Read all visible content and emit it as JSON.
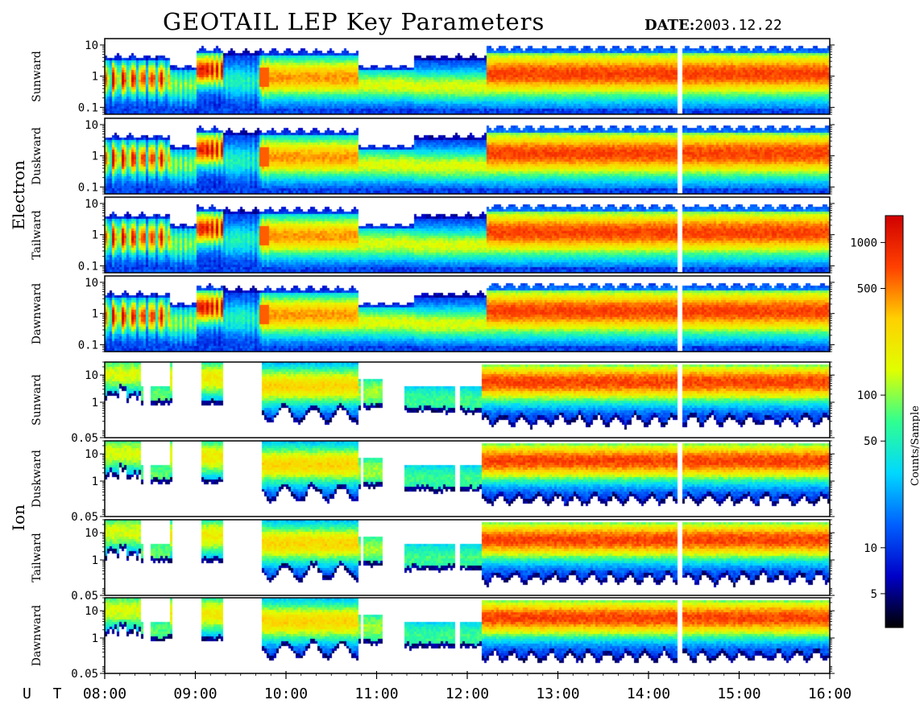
{
  "header": {
    "title": "GEOTAIL LEP Key Parameters",
    "date_label": "DATE:",
    "date_value": "2003.12.22"
  },
  "colorbar": {
    "label": "Counts/Sample",
    "ticks": [
      "5",
      "10",
      "50",
      "100",
      "500",
      "1000"
    ],
    "tick_values": [
      5,
      10,
      50,
      100,
      500,
      1000
    ],
    "range": [
      3,
      1500
    ],
    "colors": [
      "#000000",
      "#0000c8",
      "#0060ff",
      "#00d8ff",
      "#30ff90",
      "#e0ff00",
      "#ffd000",
      "#ff4000",
      "#d00000"
    ]
  },
  "chart_data": {
    "type": "heatmap",
    "title": "GEOTAIL LEP Key Parameters",
    "date": "2003.12.22",
    "x_axis_label": "U T",
    "x_ticks": [
      "08:00",
      "09:00",
      "10:00",
      "11:00",
      "12:00",
      "13:00",
      "14:00",
      "15:00",
      "16:00"
    ],
    "x_range_hours": [
      8,
      16
    ],
    "groups": [
      {
        "species": "Electron",
        "y_ticks": [
          "10",
          "1",
          "0.1"
        ],
        "y_tick_values": [
          10,
          1,
          0.1
        ],
        "y_range": [
          0.06,
          16
        ],
        "y_scale": "log",
        "panels": [
          "Sunward",
          "Duskward",
          "Tailward",
          "Dawnward"
        ]
      },
      {
        "species": "Ion",
        "y_ticks": [
          "10",
          "1",
          "0.05"
        ],
        "y_tick_values": [
          10,
          1,
          0.05
        ],
        "y_range": [
          0.05,
          30
        ],
        "y_scale": "log",
        "panels": [
          "Sunward",
          "Duskward",
          "Tailward",
          "Dawnward"
        ]
      }
    ]
  }
}
